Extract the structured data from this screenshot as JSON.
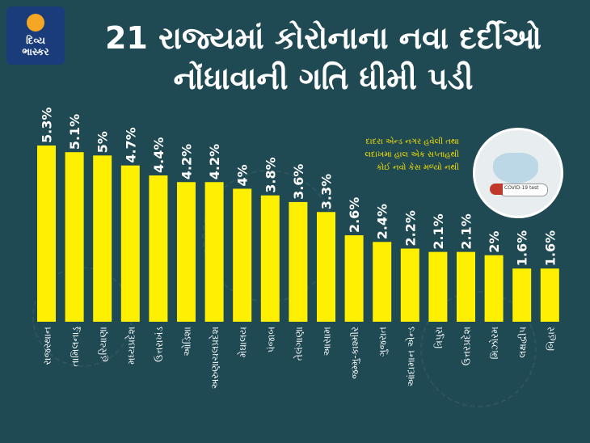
{
  "logo": {
    "line1": "દિવ્ય",
    "line2": "ભાસ્કર"
  },
  "title_line1": "21 રાજ્યમાં કોરોનાના નવા દર્દીઓ",
  "title_line2": "નોંધાવાની ગતિ ધીમી પડી",
  "note_lines": [
    "દાદરા એન્ડ નગર હવેલી તથા",
    "લદાખમાં હાલ એક સપ્તાહથી",
    "કોઈ નવો કેસ મળ્યો નથી"
  ],
  "photo_label": "COVID-19 test",
  "colors": {
    "background": "#1f4a54",
    "bar": "#ffef00",
    "text": "#ffffff"
  },
  "chart_data": {
    "type": "bar",
    "categories": [
      "રાજસ્થાન",
      "તામિલનાડુ",
      "હરિયાણા",
      "મધ્યપ્રદેશ",
      "ઉત્તરાખંડ",
      "ઓડિશા",
      "અરુણાચલપ્રદેશ",
      "મેઘાલય",
      "પંજાબ",
      "તેલંગાણા",
      "આસામ",
      "જમ્મુ-કાશ્મીર",
      "ગુજરાત",
      "આંદામાન એન્ડ",
      "ત્રિપુરા",
      "ઉત્તરપ્રદેશ",
      "મિઝોરમ",
      "લક્ષદ્વીપ",
      "બિહાર"
    ],
    "values": [
      5.3,
      5.1,
      5.0,
      4.7,
      4.4,
      4.2,
      4.2,
      4.0,
      3.8,
      3.6,
      3.3,
      2.6,
      2.4,
      2.2,
      2.1,
      2.1,
      2.0,
      1.6,
      1.6
    ],
    "labels": [
      "5.3%",
      "5.1%",
      "5%",
      "4.7%",
      "4.4%",
      "4.2%",
      "4.2%",
      "4%",
      "3.8%",
      "3.6%",
      "3.3%",
      "2.6%",
      "2.4%",
      "2.2%",
      "2.1%",
      "2.1%",
      "2%",
      "1.6%",
      "1.6%"
    ],
    "title": "",
    "xlabel": "",
    "ylabel": "",
    "ylim": [
      0,
      5.3
    ],
    "grid": false,
    "legend": "none"
  }
}
